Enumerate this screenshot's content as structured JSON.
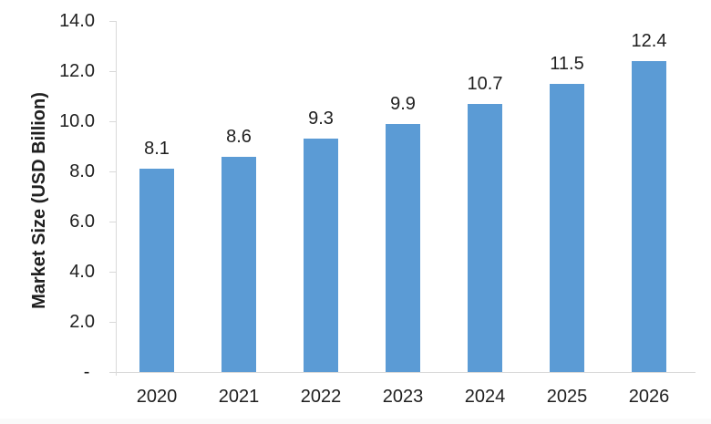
{
  "chart_data": {
    "type": "bar",
    "title": "",
    "categories": [
      "2020",
      "2021",
      "2022",
      "2023",
      "2024",
      "2025",
      "2026"
    ],
    "values": [
      8.1,
      8.6,
      9.3,
      9.9,
      10.7,
      11.5,
      12.4
    ],
    "value_labels": [
      "8.1",
      "8.6",
      "9.3",
      "9.9",
      "10.7",
      "11.5",
      "12.4"
    ],
    "xlabel": "",
    "ylabel": "Market Size (USD Billion)",
    "ylim": [
      0,
      14
    ],
    "yticks": [
      {
        "value": 0,
        "label": "- "
      },
      {
        "value": 2,
        "label": "2.0"
      },
      {
        "value": 4,
        "label": "4.0"
      },
      {
        "value": 6,
        "label": "6.0"
      },
      {
        "value": 8,
        "label": "8.0"
      },
      {
        "value": 10,
        "label": "10.0"
      },
      {
        "value": 12,
        "label": "12.0"
      },
      {
        "value": 14,
        "label": "14.0"
      }
    ],
    "grid": "off",
    "legend": "none",
    "colors": {
      "bar": "#5b9bd5",
      "axis": "#d9d9d9",
      "text": "#1f1f1f",
      "background": "#ffffff"
    }
  }
}
